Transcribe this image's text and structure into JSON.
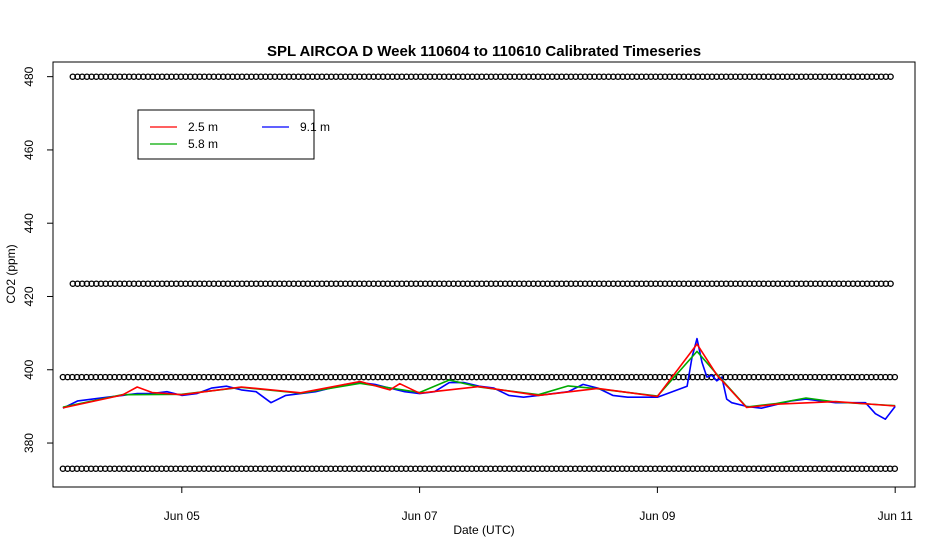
{
  "chart_data": {
    "type": "line",
    "title": "SPL AIRCOA D  Week 110604 to 110610  Calibrated Timeseries",
    "xlabel": "Date (UTC)",
    "ylabel": "CO2 (ppm)",
    "xlim": [
      "2011-06-03T22:00",
      "2011-06-11T04:00"
    ],
    "ylim": [
      368,
      484
    ],
    "x_ticks": [
      {
        "date": "2011-06-05",
        "label": "Jun 05"
      },
      {
        "date": "2011-06-07",
        "label": "Jun 07"
      },
      {
        "date": "2011-06-09",
        "label": "Jun 09"
      },
      {
        "date": "2011-06-11",
        "label": "Jun 11"
      }
    ],
    "y_ticks": [
      380,
      400,
      420,
      440,
      460,
      480
    ],
    "grid": false,
    "legend": {
      "placement": "top-left",
      "entries": [
        {
          "label": "2.5 m",
          "color": "#ff0000"
        },
        {
          "label": "5.8 m",
          "color": "#00aa00"
        },
        {
          "label": "9.1 m",
          "color": "#0000ff"
        }
      ]
    },
    "calibration_levels": [
      {
        "value": 480,
        "start": "2011-06-04T02:00",
        "end": "2011-06-11T00:00",
        "marker": "circle",
        "color": "#000000"
      },
      {
        "value": 423.5,
        "start": "2011-06-04T02:00",
        "end": "2011-06-11T00:00",
        "marker": "circle",
        "color": "#000000"
      },
      {
        "value": 398,
        "start": "2011-06-04T00:00",
        "end": "2011-06-11T00:00",
        "marker": "circle",
        "color": "#000000"
      },
      {
        "value": 373,
        "start": "2011-06-04T00:00",
        "end": "2011-06-11T00:00",
        "marker": "circle",
        "color": "#000000"
      }
    ],
    "series": [
      {
        "name": "9.1 m",
        "color": "#0000ff",
        "x": [
          "2011-06-04T00:00",
          "2011-06-04T03:00",
          "2011-06-04T06:00",
          "2011-06-04T09:00",
          "2011-06-04T12:00",
          "2011-06-04T15:00",
          "2011-06-04T18:00",
          "2011-06-04T21:00",
          "2011-06-05T00:00",
          "2011-06-05T03:00",
          "2011-06-05T06:00",
          "2011-06-05T09:00",
          "2011-06-05T12:00",
          "2011-06-05T15:00",
          "2011-06-05T18:00",
          "2011-06-05T21:00",
          "2011-06-06T00:00",
          "2011-06-06T03:00",
          "2011-06-06T06:00",
          "2011-06-06T09:00",
          "2011-06-06T12:00",
          "2011-06-06T15:00",
          "2011-06-06T18:00",
          "2011-06-06T21:00",
          "2011-06-07T00:00",
          "2011-06-07T03:00",
          "2011-06-07T06:00",
          "2011-06-07T09:00",
          "2011-06-07T12:00",
          "2011-06-07T15:00",
          "2011-06-07T18:00",
          "2011-06-07T21:00",
          "2011-06-08T00:00",
          "2011-06-08T03:00",
          "2011-06-08T06:00",
          "2011-06-08T09:00",
          "2011-06-08T12:00",
          "2011-06-08T15:00",
          "2011-06-08T18:00",
          "2011-06-08T21:00",
          "2011-06-09T00:00",
          "2011-06-09T03:00",
          "2011-06-09T06:00",
          "2011-06-09T07:00",
          "2011-06-09T08:00",
          "2011-06-09T09:00",
          "2011-06-09T10:00",
          "2011-06-09T11:00",
          "2011-06-09T12:00",
          "2011-06-09T13:00",
          "2011-06-09T14:00",
          "2011-06-09T15:00",
          "2011-06-09T18:00",
          "2011-06-09T21:00",
          "2011-06-10T00:00",
          "2011-06-10T03:00",
          "2011-06-10T06:00",
          "2011-06-10T09:00",
          "2011-06-10T12:00",
          "2011-06-10T15:00",
          "2011-06-10T18:00",
          "2011-06-10T20:00",
          "2011-06-10T22:00",
          "2011-06-11T00:00"
        ],
        "values": [
          389.5,
          391.5,
          392,
          392.5,
          393,
          393.5,
          393.5,
          394,
          393,
          393.5,
          395,
          395.5,
          394.5,
          394,
          391,
          393,
          393.5,
          394,
          395,
          396,
          396.5,
          396,
          395,
          394,
          393.5,
          394,
          396.5,
          396.5,
          395.5,
          395,
          393,
          392.5,
          393,
          393.5,
          394,
          396,
          395,
          393,
          392.5,
          392.5,
          392.5,
          394,
          395.5,
          403.5,
          408.5,
          402,
          398,
          398.5,
          397,
          398,
          392,
          391,
          390,
          389.5,
          390.5,
          391.5,
          392,
          391.5,
          391,
          391,
          391,
          388,
          386.5,
          390
        ]
      },
      {
        "name": "5.8 m",
        "color": "#00aa00",
        "x": [
          "2011-06-04T00:00",
          "2011-06-04T12:00",
          "2011-06-05T00:00",
          "2011-06-05T12:00",
          "2011-06-06T00:00",
          "2011-06-06T12:00",
          "2011-06-07T00:00",
          "2011-06-07T06:00",
          "2011-06-07T12:00",
          "2011-06-08T00:00",
          "2011-06-08T06:00",
          "2011-06-08T12:00",
          "2011-06-09T00:00",
          "2011-06-09T08:00",
          "2011-06-09T12:00",
          "2011-06-09T18:00",
          "2011-06-10T00:00",
          "2011-06-10T06:00",
          "2011-06-10T12:00",
          "2011-06-11T00:00"
        ],
        "values": [
          389.8,
          393.2,
          393.3,
          395.2,
          393.6,
          396.3,
          393.8,
          397.2,
          395.3,
          393.2,
          395.6,
          394.8,
          392.8,
          405,
          398.8,
          389.8,
          390.8,
          392.3,
          391.2,
          390.2
        ]
      },
      {
        "name": "2.5 m",
        "color": "#ff0000",
        "x": [
          "2011-06-04T00:00",
          "2011-06-04T12:00",
          "2011-06-04T15:00",
          "2011-06-04T18:00",
          "2011-06-05T00:00",
          "2011-06-05T12:00",
          "2011-06-06T00:00",
          "2011-06-06T12:00",
          "2011-06-06T18:00",
          "2011-06-06T20:00",
          "2011-06-07T00:00",
          "2011-06-07T12:00",
          "2011-06-08T00:00",
          "2011-06-08T12:00",
          "2011-06-09T00:00",
          "2011-06-09T08:00",
          "2011-06-09T12:00",
          "2011-06-09T18:00",
          "2011-06-10T00:00",
          "2011-06-10T12:00",
          "2011-06-11T00:00"
        ],
        "values": [
          389.6,
          393.1,
          395.3,
          393.8,
          393.2,
          395.3,
          393.7,
          396.8,
          394.5,
          396.2,
          393.6,
          395.4,
          393,
          394.9,
          392.7,
          407,
          398.6,
          389.7,
          390.6,
          391.3,
          390.1
        ]
      }
    ]
  }
}
